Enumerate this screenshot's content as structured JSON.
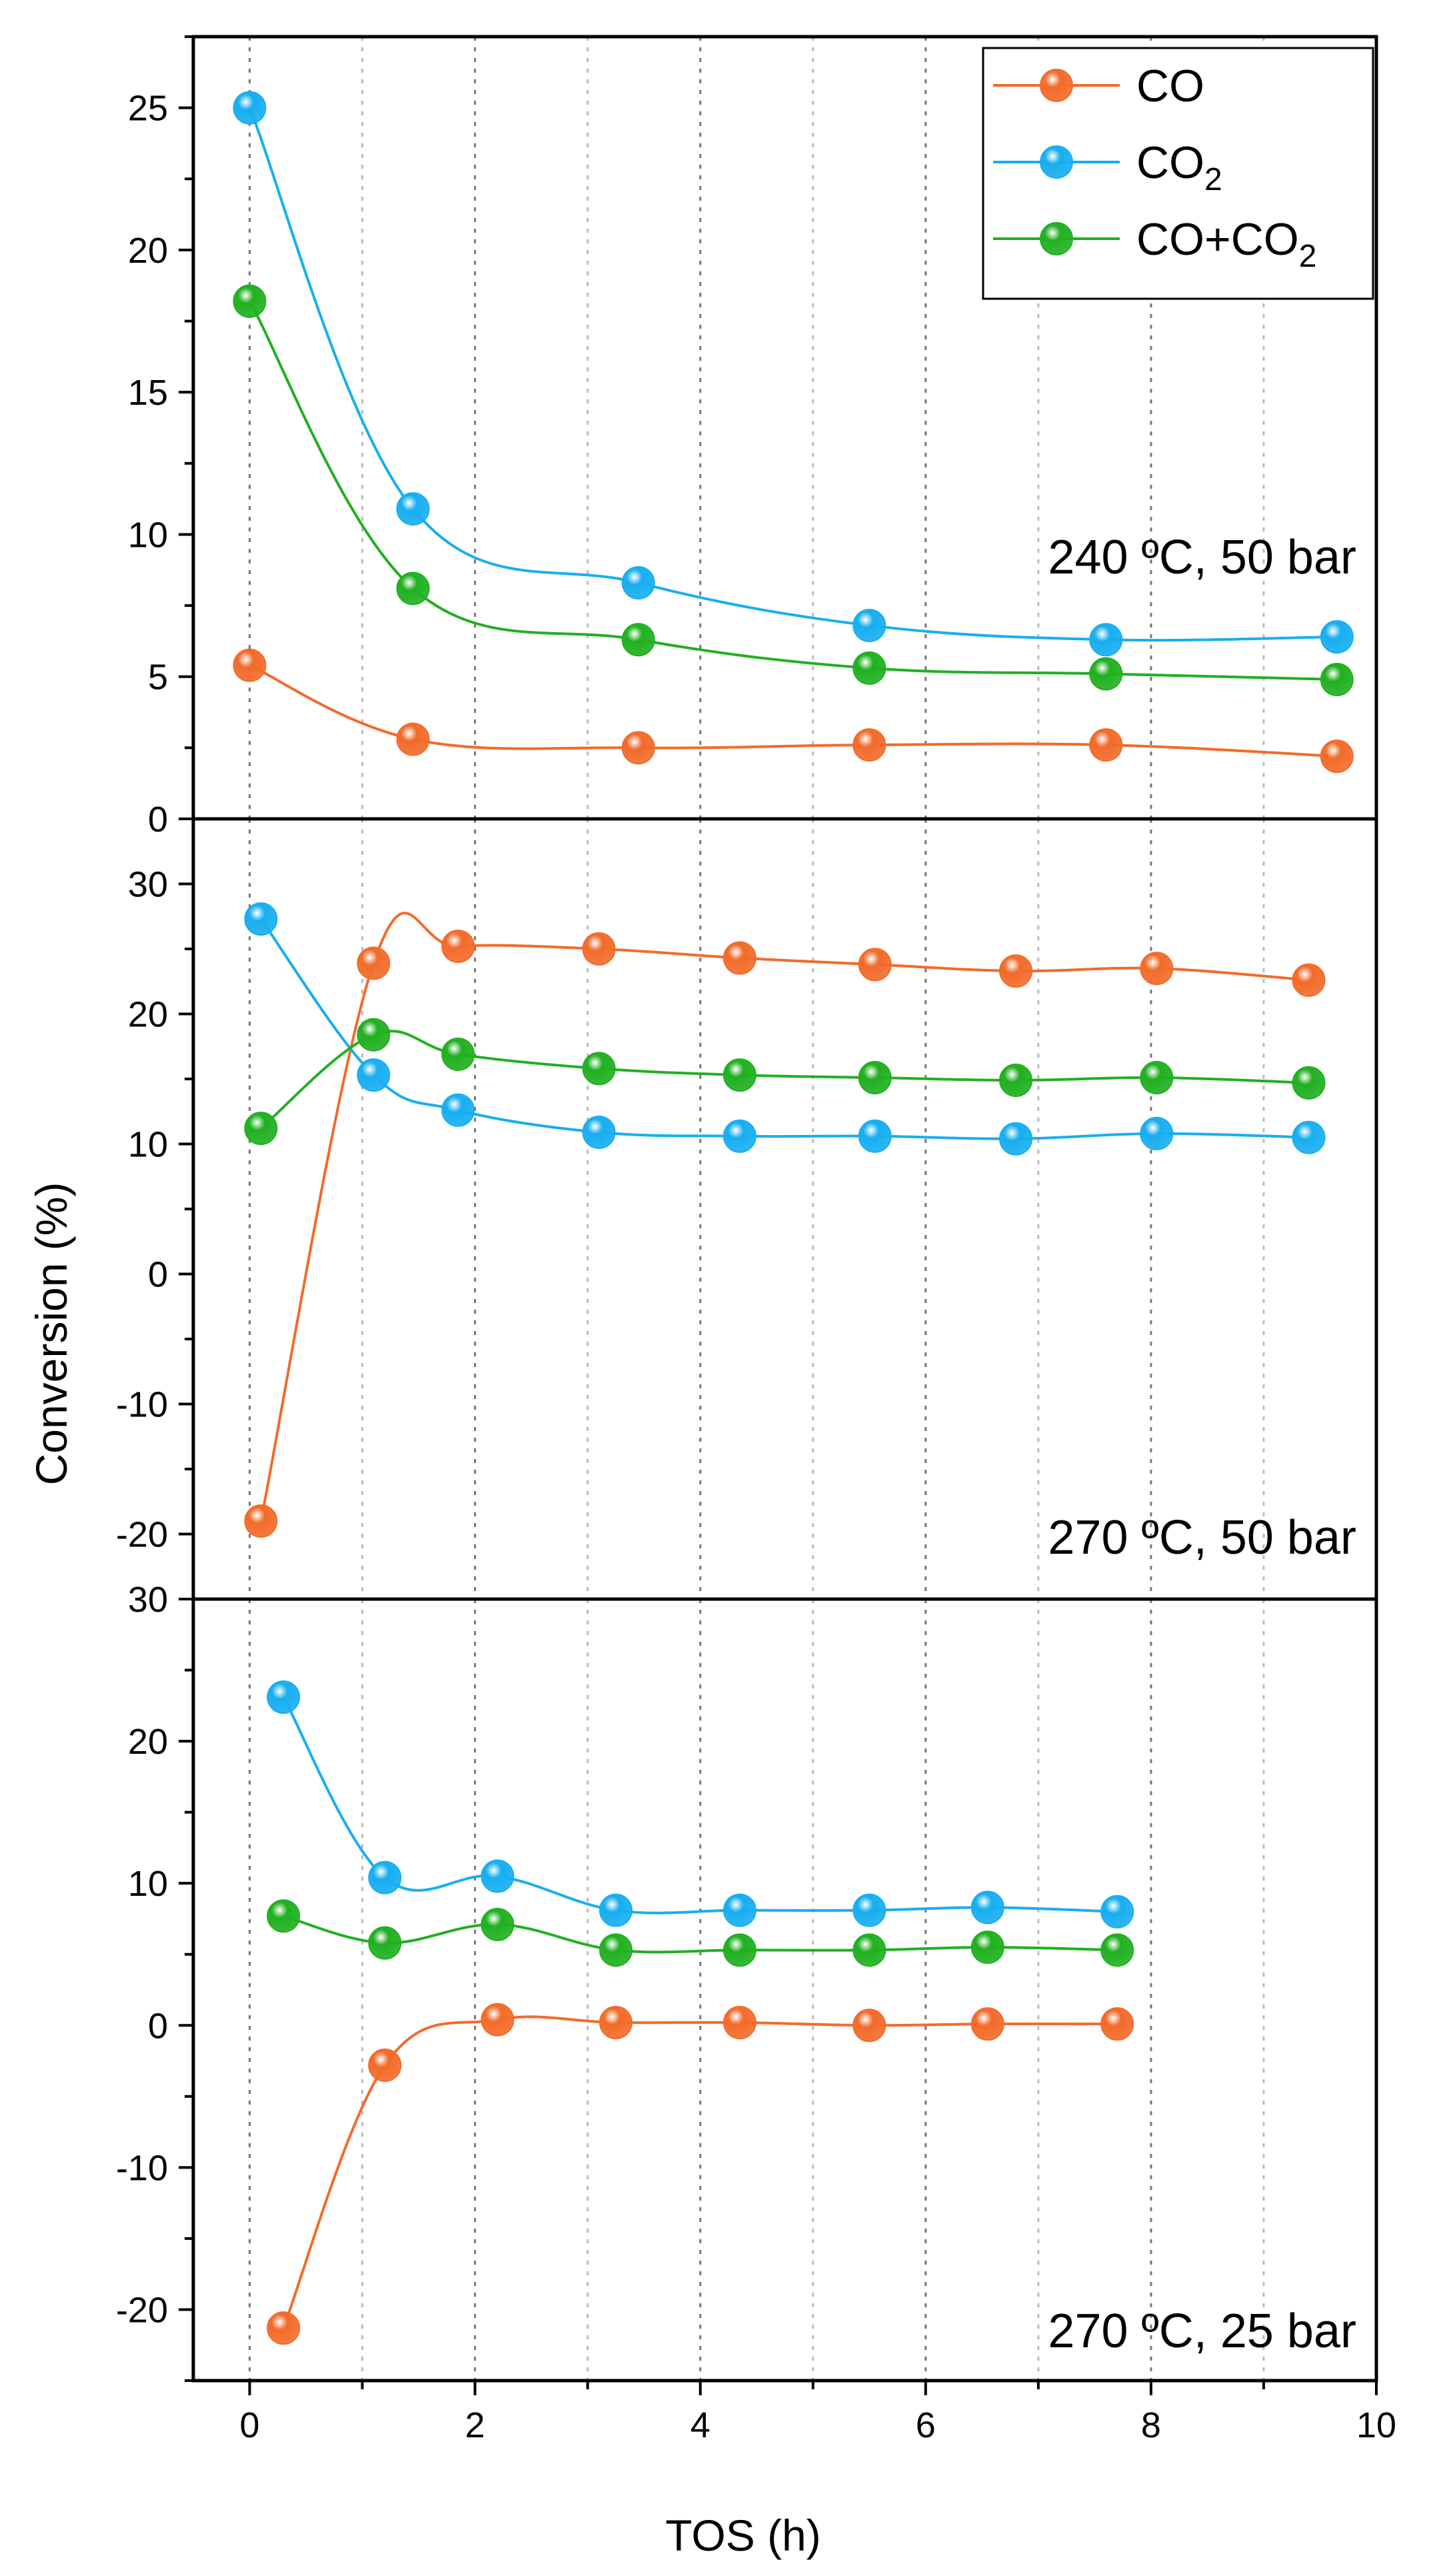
{
  "chart_data": {
    "type": "line",
    "xlabel": "TOS (h)",
    "ylabel": "Conversion (%)",
    "xlim": [
      -0.5,
      10
    ],
    "x_ticks": [
      "0",
      "2",
      "4",
      "6",
      "8",
      "10"
    ],
    "grid": "dotted vertical lines at every 1 h",
    "legend": {
      "placement": "top-right",
      "entries": [
        {
          "label": "CO",
          "sub": ""
        },
        {
          "label": "CO",
          "sub": "2"
        },
        {
          "label": "CO+CO",
          "sub": "2"
        }
      ]
    },
    "colors": {
      "CO": "#F26B2A",
      "CO2": "#17AEF0",
      "CO+CO2": "#20B020"
    },
    "panels": [
      {
        "annotation": "240 ºC, 50 bar",
        "ylim": [
          0,
          27.5
        ],
        "y_ticks": [
          "0",
          "5",
          "10",
          "15",
          "20",
          "25"
        ],
        "series": [
          {
            "name": "CO",
            "x": [
              0,
              1.45,
              3.45,
              5.5,
              7.6,
              9.65
            ],
            "y": [
              5.4,
              2.8,
              2.5,
              2.6,
              2.6,
              2.2
            ]
          },
          {
            "name": "CO2",
            "x": [
              0,
              1.45,
              3.45,
              5.5,
              7.6,
              9.65
            ],
            "y": [
              25.0,
              10.9,
              8.3,
              6.8,
              6.3,
              6.4
            ]
          },
          {
            "name": "CO+CO2",
            "x": [
              0,
              1.45,
              3.45,
              5.5,
              7.6,
              9.65
            ],
            "y": [
              18.2,
              8.1,
              6.3,
              5.3,
              5.1,
              4.9
            ]
          }
        ]
      },
      {
        "annotation": "270 ºC, 50 bar",
        "ylim": [
          -25,
          35
        ],
        "y_ticks": [
          "-20",
          "-10",
          "0",
          "10",
          "20",
          "30"
        ],
        "series": [
          {
            "name": "CO",
            "x": [
              0.1,
              1.1,
              1.85,
              3.1,
              4.35,
              5.55,
              6.8,
              8.05,
              9.4
            ],
            "y": [
              -19,
              23.9,
              25.2,
              25.0,
              24.3,
              23.8,
              23.3,
              23.5,
              22.6
            ]
          },
          {
            "name": "CO2",
            "x": [
              0.1,
              1.1,
              1.85,
              3.1,
              4.35,
              5.55,
              6.8,
              8.05,
              9.4
            ],
            "y": [
              27.3,
              15.3,
              12.6,
              10.9,
              10.6,
              10.6,
              10.4,
              10.8,
              10.5
            ]
          },
          {
            "name": "CO+CO2",
            "x": [
              0.1,
              1.1,
              1.85,
              3.1,
              4.35,
              5.55,
              6.8,
              8.05,
              9.4
            ],
            "y": [
              11.2,
              18.4,
              16.9,
              15.8,
              15.3,
              15.1,
              14.9,
              15.1,
              14.7
            ]
          }
        ]
      },
      {
        "annotation": "270 ºC, 25 bar",
        "ylim": [
          -25,
          30
        ],
        "y_ticks": [
          "-20",
          "-10",
          "0",
          "10",
          "20",
          "30"
        ],
        "series": [
          {
            "name": "CO",
            "x": [
              0.3,
              1.2,
              2.2,
              3.25,
              4.35,
              5.5,
              6.55,
              7.7
            ],
            "y": [
              -21.3,
              -2.8,
              0.4,
              0.2,
              0.2,
              0,
              0.1,
              0.1
            ]
          },
          {
            "name": "CO2",
            "x": [
              0.3,
              1.2,
              2.2,
              3.25,
              4.35,
              5.5,
              6.55,
              7.7
            ],
            "y": [
              23.1,
              10.4,
              10.5,
              8.1,
              8.1,
              8.1,
              8.3,
              8.0
            ]
          },
          {
            "name": "CO+CO2",
            "x": [
              0.3,
              1.2,
              2.2,
              3.25,
              4.35,
              5.5,
              6.55,
              7.7
            ],
            "y": [
              7.7,
              5.8,
              7.1,
              5.3,
              5.3,
              5.3,
              5.5,
              5.3
            ]
          }
        ]
      }
    ]
  }
}
